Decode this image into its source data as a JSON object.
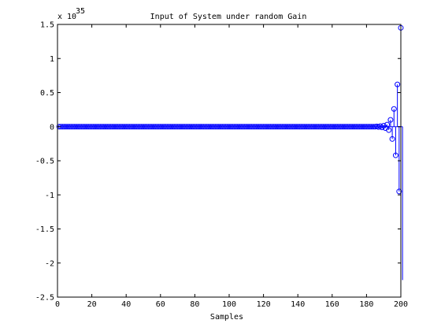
{
  "chart_data": {
    "type": "stem",
    "title": "Input of System under random Gain",
    "xlabel": "Samples",
    "ylabel": "",
    "y_exponent_label": "x 10",
    "y_exponent_value": "35",
    "xlim": [
      0,
      200
    ],
    "ylim": [
      -2.5,
      1.5
    ],
    "xticks": [
      0,
      20,
      40,
      60,
      80,
      100,
      120,
      140,
      160,
      180,
      200
    ],
    "xtick_labels": [
      "0",
      "20",
      "40",
      "60",
      "80",
      "100",
      "120",
      "140",
      "160",
      "180",
      "200"
    ],
    "yticks": [
      -2.5,
      -2,
      -1.5,
      -1,
      -0.5,
      0,
      0.5,
      1,
      1.5
    ],
    "ytick_labels": [
      "-2.5",
      "-2",
      "-1.5",
      "-1",
      "-0.5",
      "0",
      "0.5",
      "1",
      "1.5"
    ],
    "grid": false,
    "series": [
      {
        "marker": "circle",
        "color": "#0000ff",
        "x_start": 1,
        "x_end": 200,
        "baseline_value": 0,
        "nonzero_points": [
          {
            "x": 186,
            "y": 0.004
          },
          {
            "x": 187,
            "y": -0.005
          },
          {
            "x": 188,
            "y": 0.008
          },
          {
            "x": 189,
            "y": -0.01
          },
          {
            "x": 190,
            "y": 0.015
          },
          {
            "x": 191,
            "y": -0.02
          },
          {
            "x": 192,
            "y": 0.03
          },
          {
            "x": 193,
            "y": -0.05
          },
          {
            "x": 194,
            "y": 0.1
          },
          {
            "x": 195,
            "y": -0.18
          },
          {
            "x": 196,
            "y": 0.26
          },
          {
            "x": 197,
            "y": -0.42
          },
          {
            "x": 198,
            "y": 0.62
          },
          {
            "x": 199,
            "y": -0.95
          },
          {
            "x": 200,
            "y": 1.45
          },
          {
            "x": 201,
            "y": -2.25
          }
        ]
      }
    ]
  }
}
